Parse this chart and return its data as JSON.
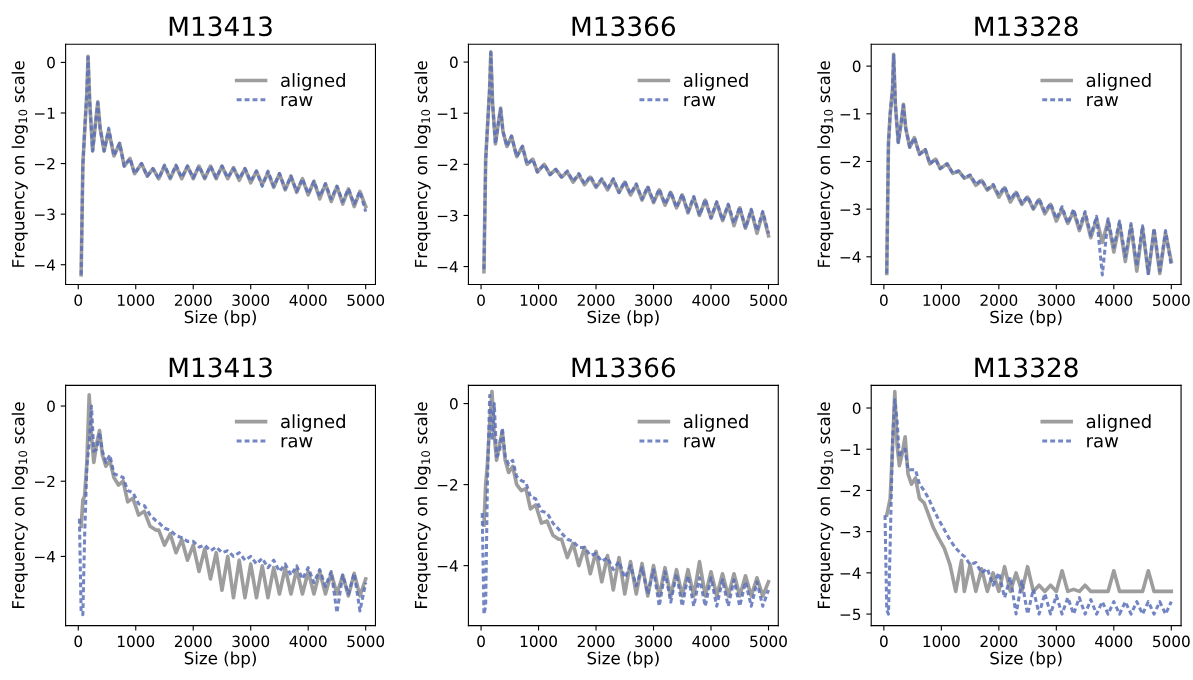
{
  "chart_data": [
    {
      "type": "line",
      "title": "M13413",
      "xlabel": "Size (bp)",
      "ylabel": "Frequency on log$_{10}$ scale",
      "legend": "top right",
      "grid": false,
      "xlim": [
        -220,
        5170
      ],
      "ylim": [
        -4.39,
        0.36
      ],
      "xticks": [
        0,
        1000,
        2000,
        3000,
        4000,
        5000
      ],
      "yticks": [
        {
          "value": -4,
          "label": "−4"
        },
        {
          "value": -3,
          "label": "−3"
        },
        {
          "value": -2,
          "label": "−2"
        },
        {
          "value": -1,
          "label": "−1"
        },
        0
      ],
      "x": [
        50,
        80,
        110,
        150,
        170,
        200,
        250,
        300,
        340,
        380,
        450,
        530,
        620,
        720,
        800,
        900,
        980,
        1100,
        1200,
        1300,
        1400,
        1500,
        1600,
        1700,
        1800,
        1900,
        2000,
        2100,
        2200,
        2300,
        2400,
        2500,
        2600,
        2700,
        2800,
        2900,
        3000,
        3100,
        3200,
        3300,
        3400,
        3500,
        3600,
        3700,
        3800,
        3900,
        4000,
        4100,
        4200,
        4300,
        4400,
        4500,
        4600,
        4700,
        4800,
        4900,
        5000
      ],
      "series": [
        {
          "name": "aligned",
          "color": "#8c8c8c",
          "line_style": "solid",
          "values": [
            -4.2,
            -2.0,
            -1.4,
            -0.6,
            0.12,
            -0.8,
            -1.75,
            -1.2,
            -0.78,
            -1.3,
            -1.75,
            -1.35,
            -1.85,
            -1.6,
            -2.05,
            -1.9,
            -2.2,
            -2.0,
            -2.25,
            -2.1,
            -2.3,
            -2.05,
            -2.3,
            -2.05,
            -2.3,
            -2.05,
            -2.3,
            -2.05,
            -2.3,
            -2.05,
            -2.3,
            -2.05,
            -2.3,
            -2.08,
            -2.33,
            -2.1,
            -2.38,
            -2.15,
            -2.42,
            -2.18,
            -2.47,
            -2.2,
            -2.52,
            -2.25,
            -2.57,
            -2.3,
            -2.62,
            -2.35,
            -2.7,
            -2.4,
            -2.75,
            -2.45,
            -2.8,
            -2.5,
            -2.85,
            -2.55,
            -2.85
          ]
        },
        {
          "name": "raw",
          "color": "#5a70b8",
          "line_style": "dashed",
          "values": [
            -4.2,
            -2.05,
            -1.35,
            -0.6,
            0.1,
            -0.8,
            -1.75,
            -1.2,
            -0.8,
            -1.3,
            -1.75,
            -1.3,
            -1.85,
            -1.6,
            -2.05,
            -1.9,
            -2.2,
            -2.0,
            -2.25,
            -2.1,
            -2.3,
            -2.03,
            -2.28,
            -2.03,
            -2.28,
            -2.05,
            -2.28,
            -2.05,
            -2.28,
            -2.05,
            -2.28,
            -2.05,
            -2.28,
            -2.1,
            -2.3,
            -2.1,
            -2.35,
            -2.15,
            -2.45,
            -2.15,
            -2.45,
            -2.2,
            -2.5,
            -2.25,
            -2.55,
            -2.3,
            -2.6,
            -2.35,
            -2.65,
            -2.4,
            -2.7,
            -2.45,
            -2.75,
            -2.5,
            -2.8,
            -2.55,
            -2.95
          ]
        }
      ]
    },
    {
      "type": "line",
      "title": "M13366",
      "xlabel": "Size (bp)",
      "ylabel": "Frequency on log$_{10}$ scale",
      "legend": "top right",
      "grid": false,
      "xlim": [
        -220,
        5170
      ],
      "ylim": [
        -4.35,
        0.35
      ],
      "xticks": [
        0,
        1000,
        2000,
        3000,
        4000,
        5000
      ],
      "yticks": [
        {
          "value": -4,
          "label": "−4"
        },
        {
          "value": -3,
          "label": "−3"
        },
        {
          "value": -2,
          "label": "−2"
        },
        {
          "value": -1,
          "label": "−1"
        },
        0
      ],
      "x": [
        50,
        80,
        110,
        150,
        170,
        200,
        250,
        300,
        340,
        380,
        450,
        530,
        620,
        720,
        800,
        900,
        980,
        1100,
        1200,
        1300,
        1400,
        1500,
        1600,
        1700,
        1800,
        1900,
        2000,
        2100,
        2200,
        2300,
        2400,
        2500,
        2600,
        2700,
        2800,
        2900,
        3000,
        3100,
        3200,
        3300,
        3400,
        3500,
        3600,
        3700,
        3800,
        3900,
        4000,
        4100,
        4200,
        4300,
        4400,
        4500,
        4600,
        4700,
        4800,
        4900,
        5000
      ],
      "series": [
        {
          "name": "aligned",
          "color": "#8c8c8c",
          "line_style": "solid",
          "values": [
            -4.1,
            -1.9,
            -1.3,
            -0.5,
            0.2,
            -0.8,
            -1.6,
            -1.2,
            -0.9,
            -1.35,
            -1.65,
            -1.45,
            -1.85,
            -1.65,
            -2.0,
            -1.9,
            -2.15,
            -2.0,
            -2.2,
            -2.1,
            -2.25,
            -2.15,
            -2.35,
            -2.2,
            -2.4,
            -2.25,
            -2.45,
            -2.3,
            -2.5,
            -2.3,
            -2.55,
            -2.35,
            -2.6,
            -2.4,
            -2.7,
            -2.45,
            -2.75,
            -2.5,
            -2.8,
            -2.55,
            -2.85,
            -2.6,
            -2.95,
            -2.65,
            -3.0,
            -2.7,
            -3.05,
            -2.75,
            -3.1,
            -2.8,
            -3.2,
            -2.85,
            -3.25,
            -2.9,
            -3.35,
            -2.95,
            -3.4
          ]
        },
        {
          "name": "raw",
          "color": "#5a70b8",
          "line_style": "dashed",
          "values": [
            -4.05,
            -1.95,
            -1.3,
            -0.5,
            0.18,
            -0.8,
            -1.6,
            -1.2,
            -0.92,
            -1.35,
            -1.65,
            -1.45,
            -1.85,
            -1.65,
            -2.0,
            -1.9,
            -2.15,
            -2.0,
            -2.2,
            -2.1,
            -2.25,
            -2.13,
            -2.33,
            -2.18,
            -2.38,
            -2.23,
            -2.43,
            -2.28,
            -2.48,
            -2.28,
            -2.55,
            -2.33,
            -2.58,
            -2.38,
            -2.68,
            -2.43,
            -2.73,
            -2.48,
            -2.78,
            -2.53,
            -2.85,
            -2.58,
            -2.93,
            -2.63,
            -3.0,
            -2.68,
            -3.05,
            -2.73,
            -3.1,
            -2.78,
            -3.15,
            -2.83,
            -3.25,
            -2.88,
            -3.3,
            -2.92,
            -3.35
          ]
        }
      ]
    },
    {
      "type": "line",
      "title": "M13328",
      "xlabel": "Size (bp)",
      "ylabel": "Frequency on log$_{10}$ scale",
      "legend": "top right",
      "grid": false,
      "xlim": [
        -220,
        5170
      ],
      "ylim": [
        -4.58,
        0.46
      ],
      "xticks": [
        0,
        1000,
        2000,
        3000,
        4000,
        5000
      ],
      "yticks": [
        {
          "value": -4,
          "label": "−4"
        },
        {
          "value": -3,
          "label": "−3"
        },
        {
          "value": -2,
          "label": "−2"
        },
        {
          "value": -1,
          "label": "−1"
        },
        0
      ],
      "x": [
        50,
        80,
        110,
        150,
        170,
        200,
        250,
        300,
        340,
        380,
        450,
        530,
        620,
        720,
        800,
        900,
        980,
        1100,
        1200,
        1300,
        1400,
        1500,
        1600,
        1700,
        1800,
        1900,
        2000,
        2100,
        2200,
        2300,
        2400,
        2500,
        2600,
        2700,
        2800,
        2900,
        3000,
        3100,
        3200,
        3300,
        3400,
        3500,
        3600,
        3700,
        3800,
        3900,
        4000,
        4100,
        4200,
        4300,
        4400,
        4500,
        4600,
        4700,
        4800,
        4900,
        5000
      ],
      "series": [
        {
          "name": "aligned",
          "color": "#8c8c8c",
          "line_style": "solid",
          "values": [
            -4.35,
            -1.6,
            -1.0,
            -0.5,
            0.25,
            -0.8,
            -1.6,
            -1.2,
            -0.8,
            -1.3,
            -1.7,
            -1.5,
            -1.85,
            -1.75,
            -2.05,
            -1.95,
            -2.15,
            -2.05,
            -2.25,
            -2.2,
            -2.35,
            -2.3,
            -2.5,
            -2.4,
            -2.6,
            -2.5,
            -2.75,
            -2.55,
            -2.85,
            -2.65,
            -2.9,
            -2.75,
            -3.0,
            -2.8,
            -3.1,
            -2.9,
            -3.25,
            -3.0,
            -3.3,
            -3.05,
            -3.45,
            -3.1,
            -3.6,
            -3.2,
            -3.7,
            -3.25,
            -3.9,
            -3.3,
            -4.1,
            -3.35,
            -4.3,
            -3.4,
            -4.35,
            -3.45,
            -4.35,
            -3.5,
            -4.1
          ]
        },
        {
          "name": "raw",
          "color": "#5a70b8",
          "line_style": "dashed",
          "values": [
            -4.35,
            -1.65,
            -1.0,
            -0.5,
            0.23,
            -0.8,
            -1.6,
            -1.2,
            -0.82,
            -1.3,
            -1.7,
            -1.5,
            -1.85,
            -1.75,
            -2.05,
            -1.95,
            -2.15,
            -2.05,
            -2.25,
            -2.2,
            -2.35,
            -2.28,
            -2.48,
            -2.38,
            -2.58,
            -2.48,
            -2.7,
            -2.53,
            -2.8,
            -2.63,
            -2.88,
            -2.73,
            -2.98,
            -2.78,
            -3.05,
            -2.88,
            -3.2,
            -2.95,
            -3.3,
            -3.0,
            -3.4,
            -3.05,
            -3.55,
            -3.15,
            -4.38,
            -3.2,
            -3.8,
            -3.25,
            -4.0,
            -3.3,
            -4.2,
            -3.35,
            -4.35,
            -3.4,
            -4.3,
            -3.45,
            -4.2
          ]
        }
      ]
    },
    {
      "type": "line",
      "title": "M13413",
      "xlabel": "Size (bp)",
      "ylabel": "Frequency on log$_{10}$ scale",
      "legend": "top right",
      "grid": false,
      "xlim": [
        -220,
        5170
      ],
      "ylim": [
        -5.84,
        0.55
      ],
      "xticks": [
        0,
        1000,
        2000,
        3000,
        4000,
        5000
      ],
      "yticks": [
        {
          "value": -4,
          "label": "−4"
        },
        {
          "value": -2,
          "label": "−2"
        },
        0
      ],
      "x": [
        20,
        50,
        80,
        110,
        150,
        190,
        230,
        270,
        320,
        370,
        420,
        480,
        550,
        620,
        700,
        780,
        860,
        950,
        1050,
        1150,
        1250,
        1350,
        1400,
        1500,
        1600,
        1700,
        1800,
        1900,
        2000,
        2100,
        2200,
        2300,
        2400,
        2500,
        2600,
        2700,
        2800,
        2900,
        3000,
        3100,
        3200,
        3300,
        3400,
        3500,
        3600,
        3700,
        3800,
        3900,
        4000,
        4100,
        4200,
        4300,
        4400,
        4500,
        4600,
        4700,
        4800,
        4900,
        5000
      ],
      "series": [
        {
          "name": "aligned",
          "color": "#8c8c8c",
          "line_style": "solid",
          "values": [
            null,
            -3.2,
            -2.5,
            -2.4,
            -1.5,
            0.3,
            -0.8,
            -1.5,
            -1.0,
            -0.65,
            -1.3,
            -1.6,
            -1.45,
            -1.9,
            -2.1,
            -2.0,
            -2.55,
            -2.45,
            -2.9,
            -2.8,
            -3.2,
            -3.3,
            -3.3,
            -3.7,
            -3.4,
            -3.9,
            -3.55,
            -4.1,
            -3.7,
            -4.4,
            -3.8,
            -4.6,
            -3.9,
            -4.9,
            -4.0,
            -5.1,
            -4.1,
            -5.1,
            -4.2,
            -5.1,
            -4.25,
            -5.1,
            -4.3,
            -5.0,
            -4.3,
            -5.0,
            -4.35,
            -5.0,
            -4.4,
            -5.0,
            -4.4,
            -5.0,
            -4.45,
            -5.0,
            -4.5,
            -5.05,
            -4.45,
            -5.05,
            -4.6
          ]
        },
        {
          "name": "raw",
          "color": "#5a70b8",
          "line_style": "dashed",
          "values": [
            -3.0,
            -5.5,
            -5.55,
            -3.5,
            -1.6,
            -1.0,
            0.0,
            -1.2,
            -1.15,
            -0.7,
            -1.2,
            -1.5,
            -1.3,
            -1.8,
            -1.85,
            -1.9,
            -2.25,
            -2.3,
            -2.6,
            -2.65,
            -2.9,
            -3.05,
            -3.1,
            -3.25,
            -3.3,
            -3.45,
            -3.5,
            -3.6,
            -3.6,
            -3.75,
            -3.7,
            -3.85,
            -3.75,
            -3.9,
            -3.85,
            -4.0,
            -3.9,
            -4.1,
            -4.0,
            -4.2,
            -4.05,
            -4.3,
            -4.1,
            -4.4,
            -4.2,
            -4.5,
            -4.25,
            -4.6,
            -4.3,
            -4.7,
            -4.35,
            -4.8,
            -4.4,
            -5.5,
            -4.5,
            -5.0,
            -4.45,
            -5.45,
            -4.7
          ]
        }
      ]
    },
    {
      "type": "line",
      "title": "M13366",
      "xlabel": "Size (bp)",
      "ylabel": "Frequency on log$_{10}$ scale",
      "legend": "top right",
      "grid": false,
      "xlim": [
        -220,
        5170
      ],
      "ylim": [
        -5.48,
        0.45
      ],
      "xticks": [
        0,
        1000,
        2000,
        3000,
        4000,
        5000
      ],
      "yticks": [
        {
          "value": -4,
          "label": "−4"
        },
        {
          "value": -2,
          "label": "−2"
        },
        0
      ],
      "x": [
        20,
        50,
        80,
        110,
        150,
        190,
        230,
        270,
        320,
        370,
        420,
        480,
        550,
        620,
        700,
        780,
        860,
        950,
        1050,
        1150,
        1250,
        1350,
        1400,
        1500,
        1600,
        1700,
        1800,
        1900,
        2000,
        2100,
        2200,
        2300,
        2400,
        2500,
        2600,
        2700,
        2800,
        2900,
        3000,
        3100,
        3200,
        3300,
        3400,
        3500,
        3600,
        3700,
        3800,
        3900,
        4000,
        4100,
        4200,
        4300,
        4400,
        4500,
        4600,
        4700,
        4800,
        4900,
        5000
      ],
      "series": [
        {
          "name": "aligned",
          "color": "#8c8c8c",
          "line_style": "solid",
          "values": [
            null,
            -3.0,
            -2.0,
            -1.5,
            -0.5,
            0.3,
            -0.8,
            -1.4,
            -1.0,
            -0.7,
            -1.4,
            -1.7,
            -1.55,
            -2.0,
            -2.15,
            -2.1,
            -2.6,
            -2.5,
            -2.95,
            -2.9,
            -3.25,
            -3.35,
            -3.35,
            -3.8,
            -3.45,
            -4.0,
            -3.55,
            -4.2,
            -3.65,
            -4.4,
            -3.75,
            -4.6,
            -3.8,
            -4.7,
            -3.9,
            -4.7,
            -3.95,
            -4.75,
            -4.0,
            -4.75,
            -4.05,
            -4.75,
            -4.1,
            -4.75,
            -4.1,
            -4.75,
            -3.9,
            -4.75,
            -4.15,
            -4.75,
            -4.2,
            -4.75,
            -4.2,
            -4.75,
            -4.25,
            -4.75,
            -4.3,
            -4.75,
            -4.4
          ]
        },
        {
          "name": "raw",
          "color": "#5a70b8",
          "line_style": "dashed",
          "values": [
            -2.7,
            -5.2,
            -5.0,
            -2.0,
            0.2,
            -0.9,
            0.0,
            -1.3,
            -1.2,
            -0.6,
            -1.3,
            -1.5,
            -1.4,
            -1.8,
            -1.9,
            -1.95,
            -2.3,
            -2.35,
            -2.65,
            -2.7,
            -2.95,
            -3.1,
            -3.2,
            -3.35,
            -3.4,
            -3.55,
            -3.55,
            -3.75,
            -3.7,
            -3.9,
            -3.8,
            -4.1,
            -3.9,
            -4.3,
            -4.0,
            -4.5,
            -4.05,
            -4.7,
            -4.1,
            -5.0,
            -4.15,
            -4.9,
            -4.2,
            -5.0,
            -4.25,
            -5.0,
            -4.3,
            -5.0,
            -4.3,
            -5.0,
            -4.35,
            -5.0,
            -4.35,
            -5.0,
            -4.4,
            -5.0,
            -4.4,
            -5.0,
            -4.6
          ]
        }
      ]
    },
    {
      "type": "line",
      "title": "M13328",
      "xlabel": "Size (bp)",
      "ylabel": "Frequency on log$_{10}$ scale",
      "legend": "top right",
      "grid": false,
      "xlim": [
        -220,
        5170
      ],
      "ylim": [
        -5.28,
        0.55
      ],
      "xticks": [
        0,
        1000,
        2000,
        3000,
        4000,
        5000
      ],
      "yticks": [
        {
          "value": -5,
          "label": "−5"
        },
        {
          "value": -4,
          "label": "−4"
        },
        {
          "value": -3,
          "label": "−3"
        },
        {
          "value": -2,
          "label": "−2"
        },
        {
          "value": -1,
          "label": "−1"
        },
        0
      ],
      "x": [
        20,
        50,
        80,
        110,
        150,
        190,
        230,
        270,
        320,
        370,
        420,
        480,
        550,
        620,
        700,
        780,
        860,
        950,
        1050,
        1150,
        1250,
        1350,
        1400,
        1500,
        1600,
        1700,
        1800,
        1900,
        2000,
        2100,
        2200,
        2300,
        2400,
        2500,
        2600,
        2700,
        2800,
        2900,
        3000,
        3100,
        3200,
        3300,
        3400,
        3500,
        3600,
        3700,
        3800,
        3900,
        4000,
        4100,
        4200,
        4300,
        4400,
        4500,
        4600,
        4700,
        4800,
        4900,
        5000
      ],
      "series": [
        {
          "name": "aligned",
          "color": "#8c8c8c",
          "line_style": "solid",
          "values": [
            null,
            -2.6,
            -2.4,
            -2.2,
            -1.0,
            0.4,
            -0.9,
            -1.4,
            -1.1,
            -0.7,
            -1.6,
            -1.85,
            -1.7,
            -2.2,
            -2.3,
            -2.6,
            -2.9,
            -3.15,
            -3.4,
            -3.8,
            -4.45,
            -3.7,
            -4.45,
            -3.8,
            -4.45,
            -3.9,
            -4.45,
            -4.0,
            -4.45,
            -3.85,
            -4.45,
            -4.0,
            -4.45,
            -3.85,
            -4.45,
            -4.3,
            -4.45,
            -4.3,
            -4.45,
            -3.95,
            -4.45,
            -4.4,
            -4.45,
            -4.3,
            -4.45,
            -4.45,
            -4.45,
            -4.45,
            -3.95,
            -4.45,
            -4.45,
            -4.45,
            -4.45,
            -4.45,
            -3.95,
            -4.45,
            -4.45,
            -4.45,
            -4.45
          ]
        },
        {
          "name": "raw",
          "color": "#5a70b8",
          "line_style": "dashed",
          "values": [
            -2.6,
            -4.9,
            -5.0,
            -3.3,
            -0.8,
            0.2,
            -0.3,
            -1.2,
            -1.0,
            -1.0,
            -1.5,
            -1.5,
            -1.5,
            -1.85,
            -2.0,
            -2.2,
            -2.45,
            -2.7,
            -2.95,
            -3.2,
            -3.4,
            -3.55,
            -3.6,
            -3.8,
            -3.75,
            -4.0,
            -3.9,
            -4.3,
            -4.0,
            -4.6,
            -4.1,
            -5.0,
            -4.2,
            -5.0,
            -4.4,
            -5.0,
            -4.5,
            -5.0,
            -4.55,
            -5.0,
            -4.6,
            -5.0,
            -4.6,
            -5.0,
            -4.65,
            -5.0,
            -4.7,
            -5.0,
            -4.7,
            -5.0,
            -4.7,
            -5.0,
            -4.7,
            -5.0,
            -4.7,
            -5.0,
            -4.7,
            -5.0,
            -4.7
          ]
        }
      ]
    }
  ]
}
